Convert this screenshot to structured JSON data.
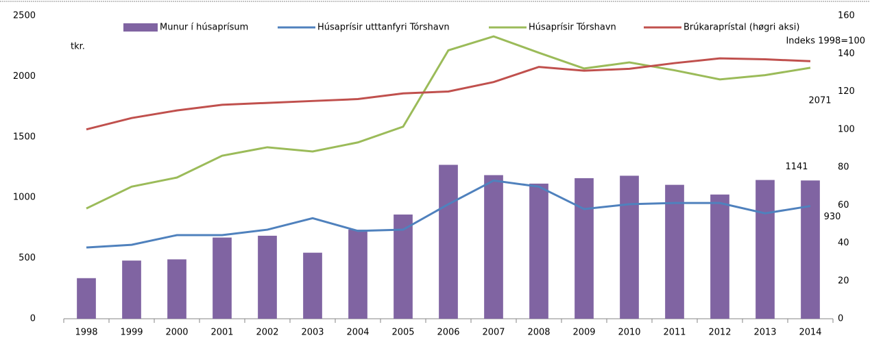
{
  "chart_data": {
    "type": "bar_line",
    "y_unit_label": "tkr.",
    "y2_unit_label": "Indeks 1998=100",
    "categories": [
      "1998",
      "1999",
      "2000",
      "2001",
      "2002",
      "2003",
      "2004",
      "2005",
      "2006",
      "2007",
      "2008",
      "2009",
      "2010",
      "2011",
      "2012",
      "2013",
      "2014"
    ],
    "series": [
      {
        "name": "Munur í húsaprísum",
        "type": "bar",
        "color": "#8064a2",
        "values": [
          335,
          480,
          490,
          670,
          685,
          545,
          735,
          860,
          1270,
          1185,
          1115,
          1160,
          1180,
          1105,
          1025,
          1145,
          1141
        ],
        "value_labels": [
          null,
          null,
          null,
          null,
          null,
          null,
          null,
          null,
          null,
          null,
          null,
          null,
          null,
          null,
          null,
          null,
          "1141"
        ]
      },
      {
        "name": "Húsaprísir utttanfyri  Tórshavn",
        "type": "line",
        "color": "#4f81bd",
        "values": [
          588,
          610,
          690,
          690,
          735,
          830,
          725,
          735,
          945,
          1140,
          1090,
          905,
          945,
          955,
          955,
          870,
          930
        ],
        "value_labels": [
          null,
          null,
          null,
          null,
          null,
          null,
          null,
          null,
          null,
          null,
          null,
          null,
          null,
          null,
          null,
          null,
          "930"
        ]
      },
      {
        "name": "Húsaprísir Tórshavn",
        "type": "line",
        "color": "#9bbb59",
        "values": [
          910,
          1090,
          1165,
          1345,
          1415,
          1380,
          1455,
          1585,
          2215,
          2330,
          2195,
          2065,
          2115,
          2050,
          1975,
          2010,
          2071
        ],
        "value_labels": [
          null,
          null,
          null,
          null,
          null,
          null,
          null,
          null,
          null,
          null,
          null,
          null,
          null,
          null,
          null,
          null,
          "2071"
        ]
      },
      {
        "name": "Brúkaraprístal (høgri aksi)",
        "type": "line",
        "color": "#c0504d",
        "axis": "y2",
        "values": [
          100,
          106,
          110,
          113,
          114,
          115,
          116,
          119,
          120,
          125,
          133,
          131,
          132,
          135,
          137.5,
          137,
          136
        ]
      }
    ],
    "ylim": [
      0,
      2500
    ],
    "yticks": [
      0,
      500,
      1000,
      1500,
      2000,
      2500
    ],
    "y2lim": [
      0,
      160
    ],
    "y2ticks": [
      0,
      20,
      40,
      60,
      80,
      100,
      120,
      140,
      160
    ],
    "legend": "top",
    "grid": false
  }
}
